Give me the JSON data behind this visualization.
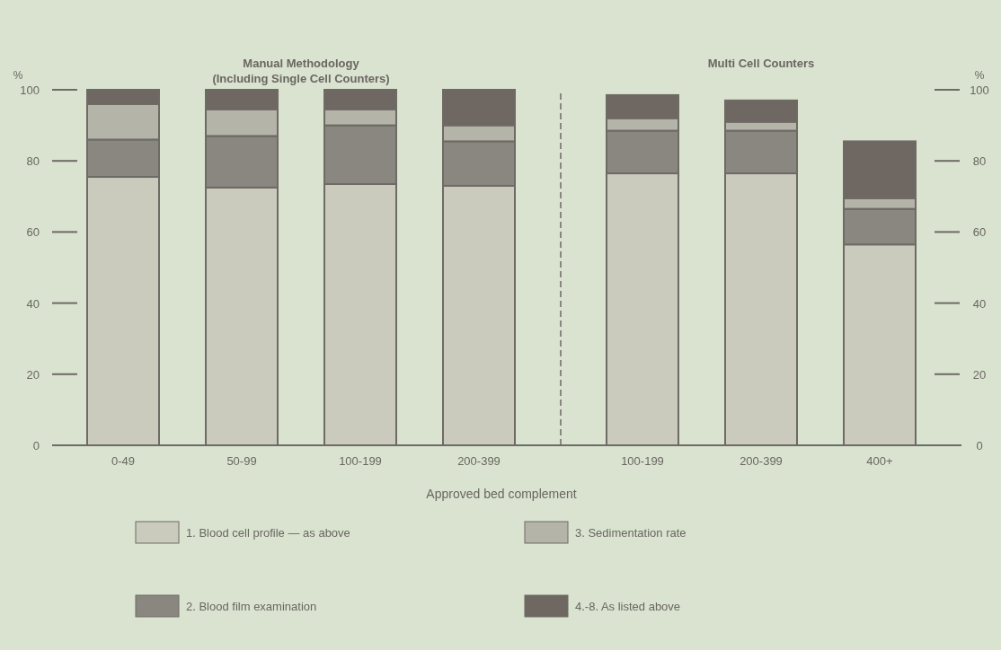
{
  "chart_data": {
    "type": "bar",
    "stacked": true,
    "categories": [
      "0-49",
      "50-99",
      "100-199",
      "200-399",
      "100-199",
      "200-399",
      "400+"
    ],
    "series": [
      {
        "name": "1. Blood cell profile — as above",
        "color": "#cbcbbd",
        "values": [
          75.5,
          72.5,
          73.5,
          73,
          76.5,
          76.5,
          56.5
        ]
      },
      {
        "name": "2. Blood film examination",
        "color": "#8a8780",
        "values": [
          10.5,
          14.5,
          16.5,
          12.5,
          12,
          12,
          10
        ]
      },
      {
        "name": "3. Sedimentation rate",
        "color": "#b5b4a8",
        "values": [
          10,
          7.5,
          4.5,
          4.5,
          3.5,
          2.5,
          3
        ]
      },
      {
        "name": "4.-8. As listed above",
        "color": "#6f6762",
        "values": [
          4,
          5.5,
          5.5,
          10,
          6.5,
          6,
          16
        ]
      }
    ],
    "ylim": [
      0,
      100
    ],
    "yticks": [
      0,
      20,
      40,
      60,
      80,
      100
    ],
    "y2lim": [
      0,
      100
    ],
    "y2ticks": [
      0,
      20,
      40,
      60,
      80,
      100
    ],
    "ylabel": "%",
    "y2label": "%",
    "xlabel": "Approved bed complement",
    "annotations": [
      "Manual Methodology\n(Including Single Cell Counters)",
      "Multi Cell Counters"
    ],
    "legend": "bottom",
    "grid": false
  }
}
